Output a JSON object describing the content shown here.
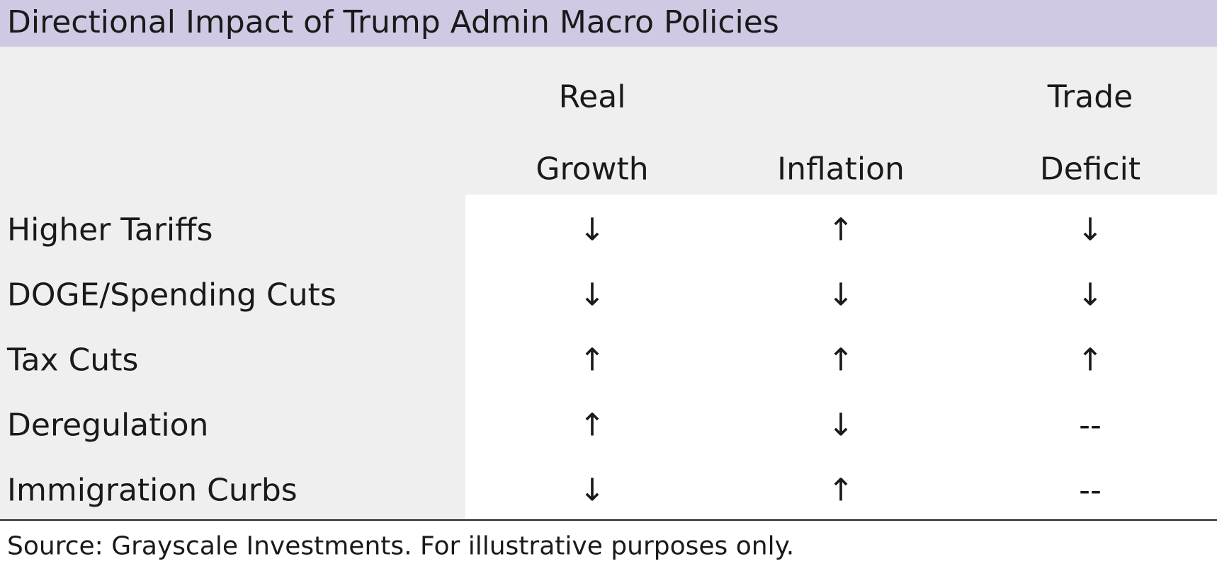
{
  "title": "Directional Impact of Trump Admin Macro Policies",
  "table": {
    "columns": [
      [
        "Real",
        "Growth"
      ],
      [
        "Inflation"
      ],
      [
        "Trade",
        "Deficit"
      ]
    ],
    "rows": [
      {
        "label": "Higher Tariffs",
        "cells": [
          "↓",
          "↑",
          "↓"
        ]
      },
      {
        "label": "DOGE/Spending Cuts",
        "cells": [
          "↓",
          "↓",
          "↓"
        ]
      },
      {
        "label": "Tax Cuts",
        "cells": [
          "↑",
          "↑",
          "↑"
        ]
      },
      {
        "label": "Deregulation",
        "cells": [
          "↑",
          "↓",
          "--"
        ]
      },
      {
        "label": "Immigration Curbs",
        "cells": [
          "↓",
          "↑",
          "--"
        ]
      }
    ]
  },
  "source": "Source: Grayscale Investments. For illustrative purposes only."
}
